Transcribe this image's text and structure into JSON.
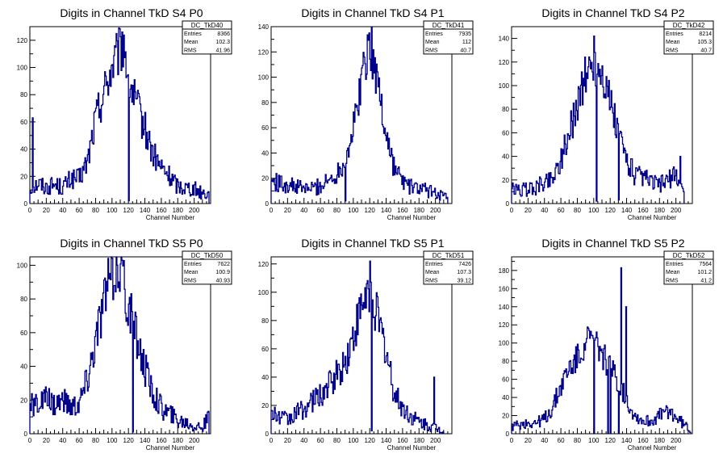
{
  "line_color": "#00008b",
  "axis_color": "#000000",
  "xlabel": "Channel Number",
  "chart_data": [
    {
      "type": "histogram",
      "title": "Digits in Channel TkD S4 P0",
      "stats": {
        "name": "DC_TkD40",
        "rows": [
          [
            "Entries",
            "8366"
          ],
          [
            "Mean",
            "102.3"
          ],
          [
            "RMS",
            "41.96"
          ]
        ]
      },
      "xlabel": "Channel Number",
      "xlim": [
        0,
        220
      ],
      "ylim": [
        0,
        130
      ],
      "xticks": [
        0,
        20,
        40,
        60,
        80,
        100,
        120,
        140,
        160,
        180,
        200
      ],
      "yticks": [
        0,
        20,
        40,
        60,
        80,
        100,
        120
      ],
      "keypoints": [
        [
          0,
          10
        ],
        [
          10,
          15
        ],
        [
          20,
          12
        ],
        [
          30,
          14
        ],
        [
          40,
          12
        ],
        [
          50,
          18
        ],
        [
          60,
          18
        ],
        [
          70,
          30
        ],
        [
          80,
          62
        ],
        [
          90,
          82
        ],
        [
          100,
          100
        ],
        [
          110,
          112
        ],
        [
          115,
          118
        ],
        [
          120,
          92
        ],
        [
          130,
          72
        ],
        [
          140,
          55
        ],
        [
          150,
          36
        ],
        [
          160,
          26
        ],
        [
          170,
          20
        ],
        [
          180,
          13
        ],
        [
          190,
          12
        ],
        [
          200,
          11
        ],
        [
          210,
          8
        ],
        [
          218,
          7
        ]
      ],
      "spikes": [
        [
          3,
          63
        ],
        [
          112,
          126
        ],
        [
          120,
          2
        ]
      ]
    },
    {
      "type": "histogram",
      "title": "Digits in Channel TkD S4 P1",
      "stats": {
        "name": "DC_TkD41",
        "rows": [
          [
            "Entries",
            "7935"
          ],
          [
            "Mean",
            "112"
          ],
          [
            "RMS",
            "40.7"
          ]
        ]
      },
      "xlabel": "Channel Number",
      "xlim": [
        0,
        220
      ],
      "ylim": [
        0,
        140
      ],
      "xticks": [
        0,
        20,
        40,
        60,
        80,
        100,
        120,
        140,
        160,
        180,
        200
      ],
      "yticks": [
        0,
        20,
        40,
        60,
        80,
        100,
        120,
        140
      ],
      "keypoints": [
        [
          0,
          18
        ],
        [
          10,
          16
        ],
        [
          20,
          15
        ],
        [
          30,
          13
        ],
        [
          40,
          12
        ],
        [
          50,
          12
        ],
        [
          60,
          14
        ],
        [
          70,
          18
        ],
        [
          80,
          24
        ],
        [
          90,
          35
        ],
        [
          100,
          58
        ],
        [
          110,
          98
        ],
        [
          115,
          115
        ],
        [
          120,
          128
        ],
        [
          130,
          95
        ],
        [
          140,
          55
        ],
        [
          150,
          28
        ],
        [
          160,
          18
        ],
        [
          170,
          13
        ],
        [
          180,
          12
        ],
        [
          190,
          10
        ],
        [
          200,
          9
        ],
        [
          210,
          6
        ],
        [
          215,
          3
        ]
      ],
      "spikes": [
        [
          119,
          135
        ],
        [
          90,
          2
        ]
      ]
    },
    {
      "type": "histogram",
      "title": "Digits in Channel TkD S4 P2",
      "stats": {
        "name": "DC_TkD42",
        "rows": [
          [
            "Entries",
            "8214"
          ],
          [
            "Mean",
            "105.3"
          ],
          [
            "RMS",
            "40.7"
          ]
        ]
      },
      "xlabel": "Channel Number",
      "xlim": [
        0,
        220
      ],
      "ylim": [
        0,
        150
      ],
      "xticks": [
        0,
        20,
        40,
        60,
        80,
        100,
        120,
        140,
        160,
        180,
        200
      ],
      "yticks": [
        0,
        20,
        40,
        60,
        80,
        100,
        120,
        140
      ],
      "keypoints": [
        [
          0,
          12
        ],
        [
          10,
          11
        ],
        [
          20,
          12
        ],
        [
          30,
          14
        ],
        [
          40,
          18
        ],
        [
          50,
          22
        ],
        [
          60,
          38
        ],
        [
          70,
          58
        ],
        [
          80,
          85
        ],
        [
          90,
          108
        ],
        [
          100,
          118
        ],
        [
          110,
          112
        ],
        [
          120,
          86
        ],
        [
          130,
          58
        ],
        [
          140,
          38
        ],
        [
          150,
          24
        ],
        [
          160,
          22
        ],
        [
          170,
          18
        ],
        [
          180,
          16
        ],
        [
          190,
          20
        ],
        [
          200,
          24
        ],
        [
          210,
          10
        ]
      ],
      "spikes": [
        [
          100,
          142
        ],
        [
          103,
          2
        ],
        [
          130,
          3
        ],
        [
          205,
          40
        ]
      ]
    },
    {
      "type": "histogram",
      "title": "Digits in Channel TkD S5 P0",
      "stats": {
        "name": "DC_TkD50",
        "rows": [
          [
            "Entries",
            "7622"
          ],
          [
            "Mean",
            "100.9"
          ],
          [
            "RMS",
            "40.93"
          ]
        ]
      },
      "xlabel": "Channel Number",
      "xlim": [
        0,
        220
      ],
      "ylim": [
        0,
        105
      ],
      "xticks": [
        0,
        20,
        40,
        60,
        80,
        100,
        120,
        140,
        160,
        180,
        200
      ],
      "yticks": [
        0,
        20,
        40,
        60,
        80,
        100
      ],
      "keypoints": [
        [
          0,
          16
        ],
        [
          10,
          18
        ],
        [
          20,
          20
        ],
        [
          30,
          18
        ],
        [
          40,
          20
        ],
        [
          50,
          16
        ],
        [
          60,
          18
        ],
        [
          70,
          32
        ],
        [
          80,
          55
        ],
        [
          90,
          78
        ],
        [
          100,
          95
        ],
        [
          110,
          98
        ],
        [
          120,
          74
        ],
        [
          130,
          58
        ],
        [
          140,
          38
        ],
        [
          150,
          24
        ],
        [
          160,
          16
        ],
        [
          170,
          12
        ],
        [
          180,
          8
        ],
        [
          190,
          7
        ],
        [
          200,
          5
        ],
        [
          210,
          4
        ],
        [
          218,
          9
        ]
      ],
      "spikes": [
        [
          112,
          103
        ],
        [
          125,
          1
        ]
      ]
    },
    {
      "type": "histogram",
      "title": "Digits in Channel TkD S5 P1",
      "stats": {
        "name": "DC_TkD51",
        "rows": [
          [
            "Entries",
            "7426"
          ],
          [
            "Mean",
            "107.3"
          ],
          [
            "RMS",
            "39.12"
          ]
        ]
      },
      "xlabel": "Channel Number",
      "xlim": [
        0,
        220
      ],
      "ylim": [
        0,
        125
      ],
      "xticks": [
        0,
        20,
        40,
        60,
        80,
        100,
        120,
        140,
        160,
        180,
        200
      ],
      "yticks": [
        0,
        20,
        40,
        60,
        80,
        100,
        120
      ],
      "keypoints": [
        [
          0,
          14
        ],
        [
          10,
          12
        ],
        [
          20,
          10
        ],
        [
          30,
          14
        ],
        [
          40,
          18
        ],
        [
          50,
          22
        ],
        [
          60,
          28
        ],
        [
          70,
          34
        ],
        [
          80,
          42
        ],
        [
          90,
          50
        ],
        [
          100,
          68
        ],
        [
          110,
          88
        ],
        [
          120,
          104
        ],
        [
          130,
          80
        ],
        [
          140,
          58
        ],
        [
          150,
          28
        ],
        [
          160,
          18
        ],
        [
          170,
          12
        ],
        [
          180,
          8
        ],
        [
          190,
          6
        ],
        [
          200,
          4
        ],
        [
          210,
          2
        ]
      ],
      "spikes": [
        [
          120,
          122
        ],
        [
          122,
          2
        ],
        [
          198,
          40
        ]
      ]
    },
    {
      "type": "histogram",
      "title": "Digits in Channel TkD S5 P2",
      "stats": {
        "name": "DC_TkD52",
        "rows": [
          [
            "Entries",
            "7564"
          ],
          [
            "Mean",
            "101.2"
          ],
          [
            "RMS",
            "41.2"
          ]
        ]
      },
      "xlabel": "Channel Number",
      "xlim": [
        0,
        220
      ],
      "ylim": [
        0,
        195
      ],
      "xticks": [
        0,
        20,
        40,
        60,
        80,
        100,
        120,
        140,
        160,
        180,
        200
      ],
      "yticks": [
        0,
        20,
        40,
        60,
        80,
        100,
        120,
        140,
        160,
        180
      ],
      "keypoints": [
        [
          0,
          8
        ],
        [
          10,
          10
        ],
        [
          20,
          12
        ],
        [
          30,
          12
        ],
        [
          40,
          16
        ],
        [
          50,
          28
        ],
        [
          60,
          52
        ],
        [
          70,
          72
        ],
        [
          80,
          82
        ],
        [
          90,
          104
        ],
        [
          100,
          102
        ],
        [
          110,
          90
        ],
        [
          120,
          72
        ],
        [
          130,
          58
        ],
        [
          140,
          36
        ],
        [
          150,
          20
        ],
        [
          160,
          14
        ],
        [
          170,
          14
        ],
        [
          180,
          20
        ],
        [
          190,
          26
        ],
        [
          200,
          18
        ],
        [
          210,
          10
        ],
        [
          218,
          4
        ]
      ],
      "spikes": [
        [
          133,
          183
        ],
        [
          139,
          140
        ],
        [
          100,
          1
        ],
        [
          117,
          1
        ],
        [
          120,
          1
        ],
        [
          130,
          1
        ]
      ]
    }
  ]
}
